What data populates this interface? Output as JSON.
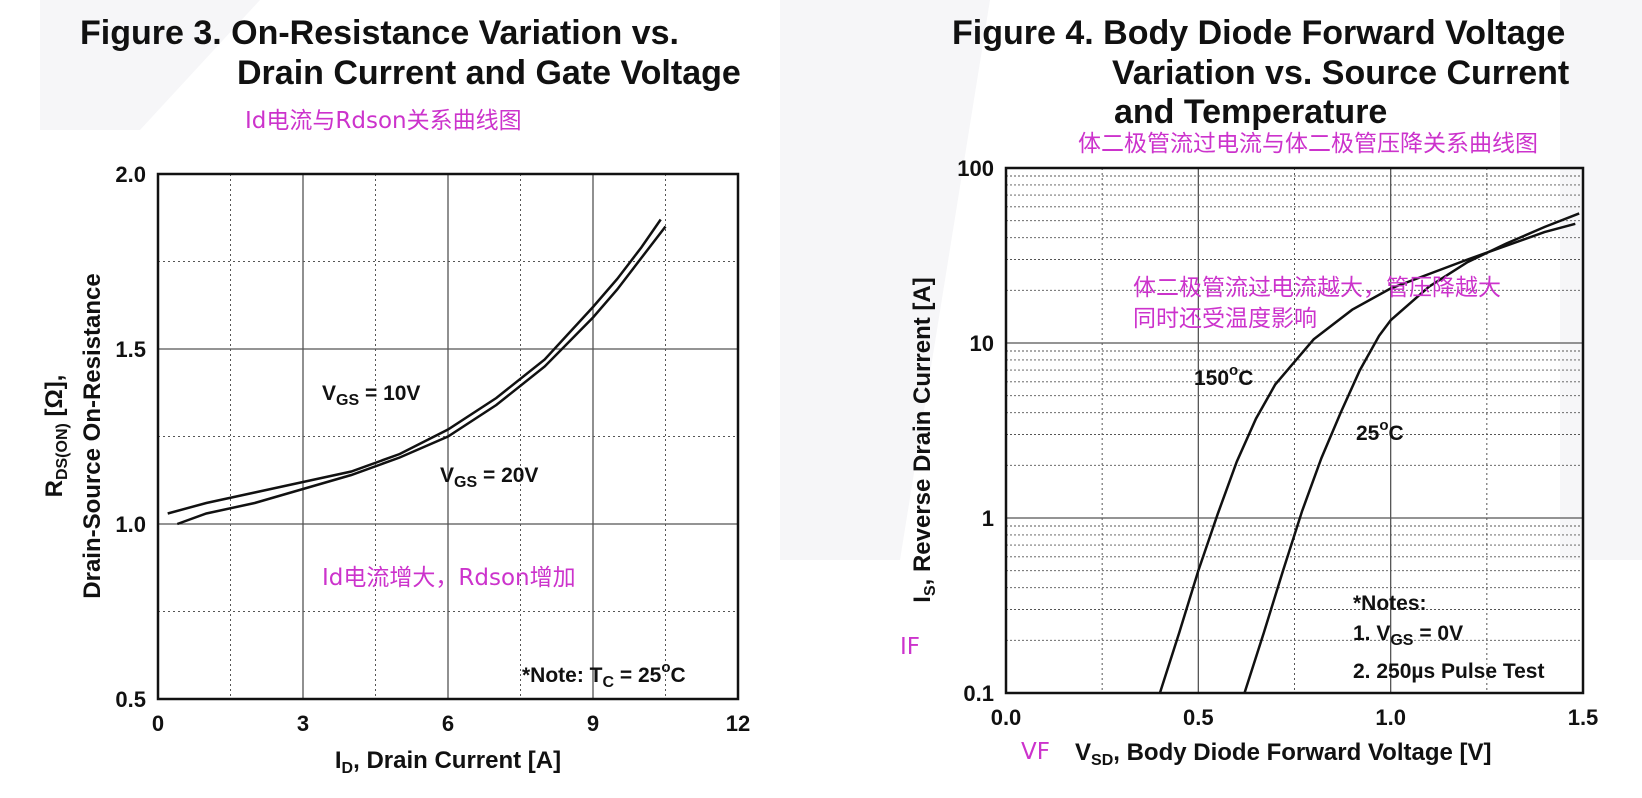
{
  "chart_data": [
    {
      "type": "line",
      "title_line1": "Figure 3. On-Resistance Variation vs.",
      "title_line2": "Drain Current and Gate Voltage",
      "xlabel": "I",
      "xlabel_sub": "D",
      "xlabel_rest": ", Drain Current [A]",
      "ylabel1_main": "R",
      "ylabel1_sub": "DS(ON)",
      "ylabel1_rest": " [Ω],",
      "ylabel2": "Drain-Source On-Resistance",
      "xlim": [
        0,
        12
      ],
      "ylim": [
        0.5,
        2.0
      ],
      "x_ticks": [
        "0",
        "3",
        "6",
        "9",
        "12"
      ],
      "y_ticks": [
        "0.5",
        "1.0",
        "1.5",
        "2.0"
      ],
      "series": [
        {
          "label_main": "V",
          "label_sub": "GS",
          "label_rest": " = 10V",
          "x": [
            0.2,
            1.0,
            2.0,
            3.0,
            4.0,
            5.0,
            6.0,
            7.0,
            8.0,
            9.0,
            9.5,
            10.0,
            10.4
          ],
          "y": [
            1.03,
            1.06,
            1.09,
            1.12,
            1.15,
            1.2,
            1.27,
            1.36,
            1.47,
            1.62,
            1.7,
            1.79,
            1.87
          ]
        },
        {
          "label_main": "V",
          "label_sub": "GS",
          "label_rest": " = 20V",
          "x": [
            0.4,
            1.0,
            2.0,
            3.0,
            4.0,
            5.0,
            6.0,
            7.0,
            8.0,
            9.0,
            9.5,
            10.0,
            10.5
          ],
          "y": [
            1.0,
            1.03,
            1.06,
            1.1,
            1.14,
            1.19,
            1.25,
            1.34,
            1.45,
            1.59,
            1.67,
            1.76,
            1.85
          ]
        }
      ],
      "note_main": "*Note: T",
      "note_sub": "C",
      "note_mid": " = 25",
      "note_sup": "o",
      "note_end": "C",
      "annotations": {
        "header": "Id电流与Rdson关系曲线图",
        "body": "Id电流增大，Rdson增加"
      }
    },
    {
      "type": "line",
      "title_line1": "Figure 4. Body Diode Forward Voltage",
      "title_line2": "Variation vs. Source Current",
      "title_line3": "and Temperature",
      "xlabel_main": "V",
      "xlabel_sub": "SD",
      "xlabel_rest": ", Body Diode Forward Voltage [V]",
      "ylabel_main": "I",
      "ylabel_sub": "S",
      "ylabel_rest": ", Reverse Drain Current [A]",
      "xlim": [
        0.0,
        1.5
      ],
      "ylim": [
        0.1,
        100
      ],
      "yscale": "log",
      "x_ticks": [
        "0.0",
        "0.5",
        "1.0",
        "1.5"
      ],
      "y_ticks": [
        "0.1",
        "1",
        "10",
        "100"
      ],
      "series": [
        {
          "label": "150",
          "label_sup": "o",
          "label_end": "C",
          "x": [
            0.4,
            0.45,
            0.5,
            0.55,
            0.6,
            0.65,
            0.7,
            0.8,
            0.9,
            1.0,
            1.2,
            1.4,
            1.48
          ],
          "y": [
            0.1,
            0.22,
            0.5,
            1.05,
            2.1,
            3.7,
            5.8,
            10.5,
            15.5,
            20.5,
            30,
            43,
            48
          ]
        },
        {
          "label": "25",
          "label_sup": "o",
          "label_end": "C",
          "x": [
            0.62,
            0.67,
            0.72,
            0.77,
            0.82,
            0.87,
            0.92,
            0.97,
            1.0,
            1.1,
            1.2,
            1.3,
            1.4,
            1.49
          ],
          "y": [
            0.1,
            0.22,
            0.5,
            1.1,
            2.2,
            4.0,
            7.0,
            11.0,
            13.5,
            21,
            29,
            37,
            46,
            55
          ]
        }
      ],
      "notes_title": "*Notes:",
      "note1_main": "1. V",
      "note1_sub": "GS",
      "note1_rest": " = 0V",
      "note2": "2. 250µs Pulse Test",
      "annotations": {
        "header": "体二极管流过电流与体二极管压降关系曲线图",
        "body_line1": "体二极管流过电流越大，管压降越大",
        "body_line2": "同时还受温度影响",
        "y_tag": "IF",
        "x_tag": "VF"
      }
    }
  ],
  "colors": {
    "annotation": "#cc33cc",
    "line": "#111111",
    "grid": "#555555"
  }
}
